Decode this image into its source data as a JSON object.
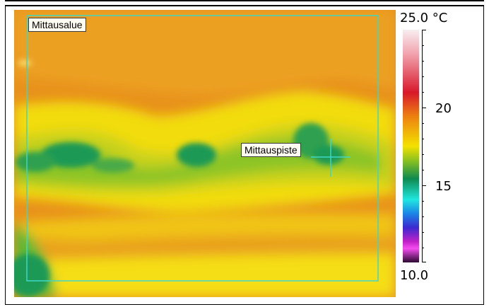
{
  "measurement_area_label": "Mittausalue",
  "measurement_point_label": "Mittauspiste",
  "scale": {
    "max_label": "25.0 °C",
    "min_label": "10.0",
    "tick_labels": [
      "20",
      "15"
    ],
    "min": 10.0,
    "max": 25.0,
    "unit": "°C"
  },
  "colors": {
    "overlay": "#3fd6c6",
    "warm": "#e99a1e",
    "cool": "#1c9a55"
  }
}
